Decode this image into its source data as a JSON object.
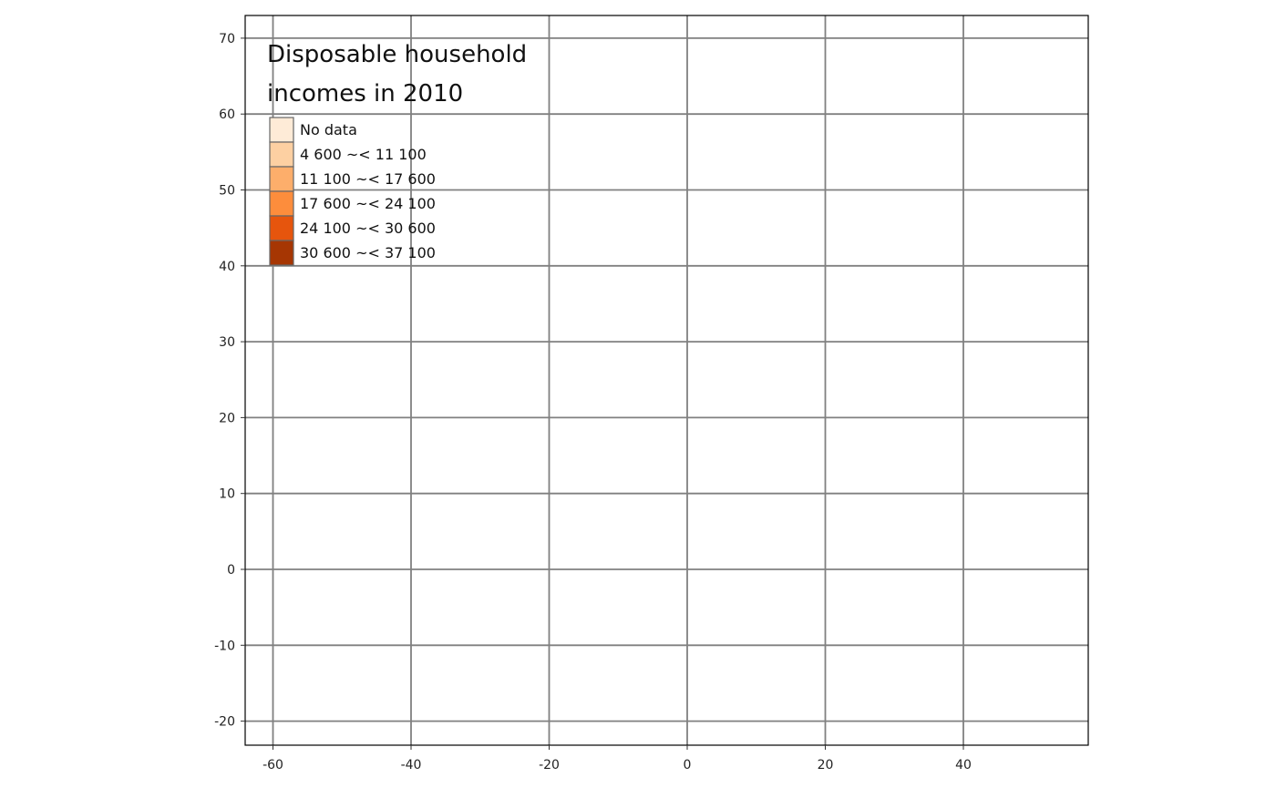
{
  "chart_data": {
    "type": "map",
    "x_axis": {
      "ticks": [
        -60,
        -40,
        -20,
        0,
        20,
        40
      ],
      "range": [
        -64,
        59
      ]
    },
    "y_axis": {
      "ticks": [
        -20,
        -10,
        0,
        10,
        20,
        30,
        40,
        50,
        60,
        70
      ],
      "range": [
        -23.5,
        73
      ]
    },
    "grid": true,
    "grid_color": "#808080",
    "legend": {
      "position": "top-left",
      "title_lines": [
        "Disposable household",
        "incomes in 2010"
      ],
      "items": [
        {
          "label": "No data",
          "color": "#FEEBD7"
        },
        {
          "label": "4 600 ~< 11 100",
          "color": "#FDD0A2"
        },
        {
          "label": "11 100 ~< 17 600",
          "color": "#FDAE6B"
        },
        {
          "label": "17 600 ~< 24 100",
          "color": "#FD8D3C"
        },
        {
          "label": "24 100 ~< 30 600",
          "color": "#E6550D"
        },
        {
          "label": "30 600 ~< 37 100",
          "color": "#A63603"
        }
      ]
    }
  }
}
